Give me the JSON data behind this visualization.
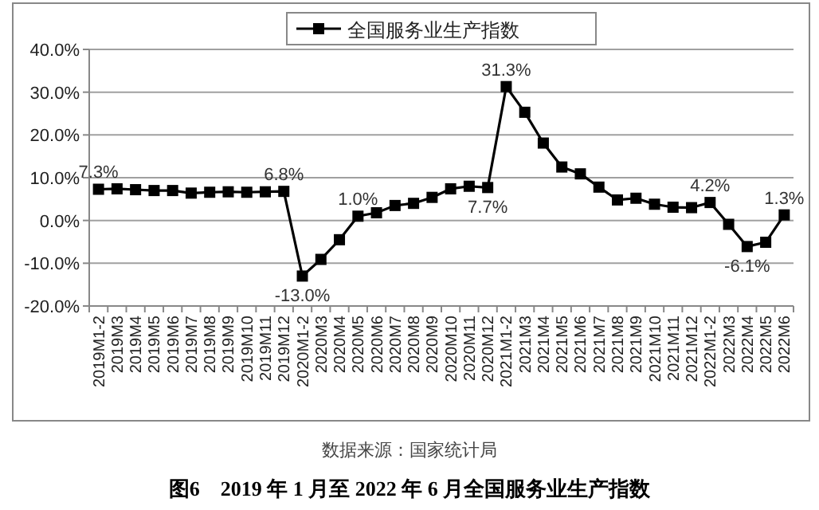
{
  "chart_data": {
    "type": "line",
    "categories": [
      "2019M1-2",
      "2019M3",
      "2019M4",
      "2019M5",
      "2019M6",
      "2019M7",
      "2019M8",
      "2019M9",
      "2019M10",
      "2019M11",
      "2019M12",
      "2020M1-2",
      "2020M3",
      "2020M4",
      "2020M5",
      "2020M6",
      "2020M7",
      "2020M8",
      "2020M9",
      "2020M10",
      "2020M11",
      "2020M12",
      "2021M1-2",
      "2021M3",
      "2021M4",
      "2021M5",
      "2021M6",
      "2021M7",
      "2021M8",
      "2021M9",
      "2021M10",
      "2021M11",
      "2021M12",
      "2022M1-2",
      "2022M3",
      "2022M4",
      "2022M5",
      "2022M6"
    ],
    "series": [
      {
        "name": "全国服务业生产指数",
        "color": "#000000",
        "values": [
          7.3,
          7.4,
          7.2,
          7.0,
          7.0,
          6.4,
          6.6,
          6.7,
          6.6,
          6.7,
          6.8,
          -13.0,
          -9.1,
          -4.5,
          1.0,
          1.8,
          3.5,
          4.0,
          5.4,
          7.4,
          8.0,
          7.7,
          31.3,
          25.3,
          18.1,
          12.5,
          10.9,
          7.8,
          4.8,
          5.2,
          3.8,
          3.1,
          3.0,
          4.2,
          -0.9,
          -6.1,
          -5.1,
          1.3
        ],
        "value_labels": [
          "7.3%",
          null,
          null,
          null,
          null,
          null,
          null,
          null,
          null,
          null,
          "6.8%",
          "-13.0%",
          null,
          null,
          "1.0%",
          null,
          null,
          null,
          null,
          null,
          null,
          "7.7%",
          "31.3%",
          null,
          null,
          null,
          null,
          null,
          null,
          null,
          null,
          null,
          null,
          "4.2%",
          null,
          "-6.1%",
          null,
          "1.3%"
        ]
      }
    ],
    "ylim": [
      -20,
      40
    ],
    "yticks": [
      {
        "value": -20,
        "label": "-20.0%"
      },
      {
        "value": -10,
        "label": "-10.0%"
      },
      {
        "value": 0,
        "label": "0.0%"
      },
      {
        "value": 10,
        "label": "10.0%"
      },
      {
        "value": 20,
        "label": "20.0%"
      },
      {
        "value": 30,
        "label": "30.0%"
      },
      {
        "value": 40,
        "label": "40.0%"
      }
    ],
    "grid": "y",
    "legend": "top",
    "marker": "square",
    "line_style": "solid",
    "annotations": [
      "数据来源：国家统计局",
      "图6　2019 年 1 月至 2022 年 6 月全国服务业生产指数"
    ]
  }
}
